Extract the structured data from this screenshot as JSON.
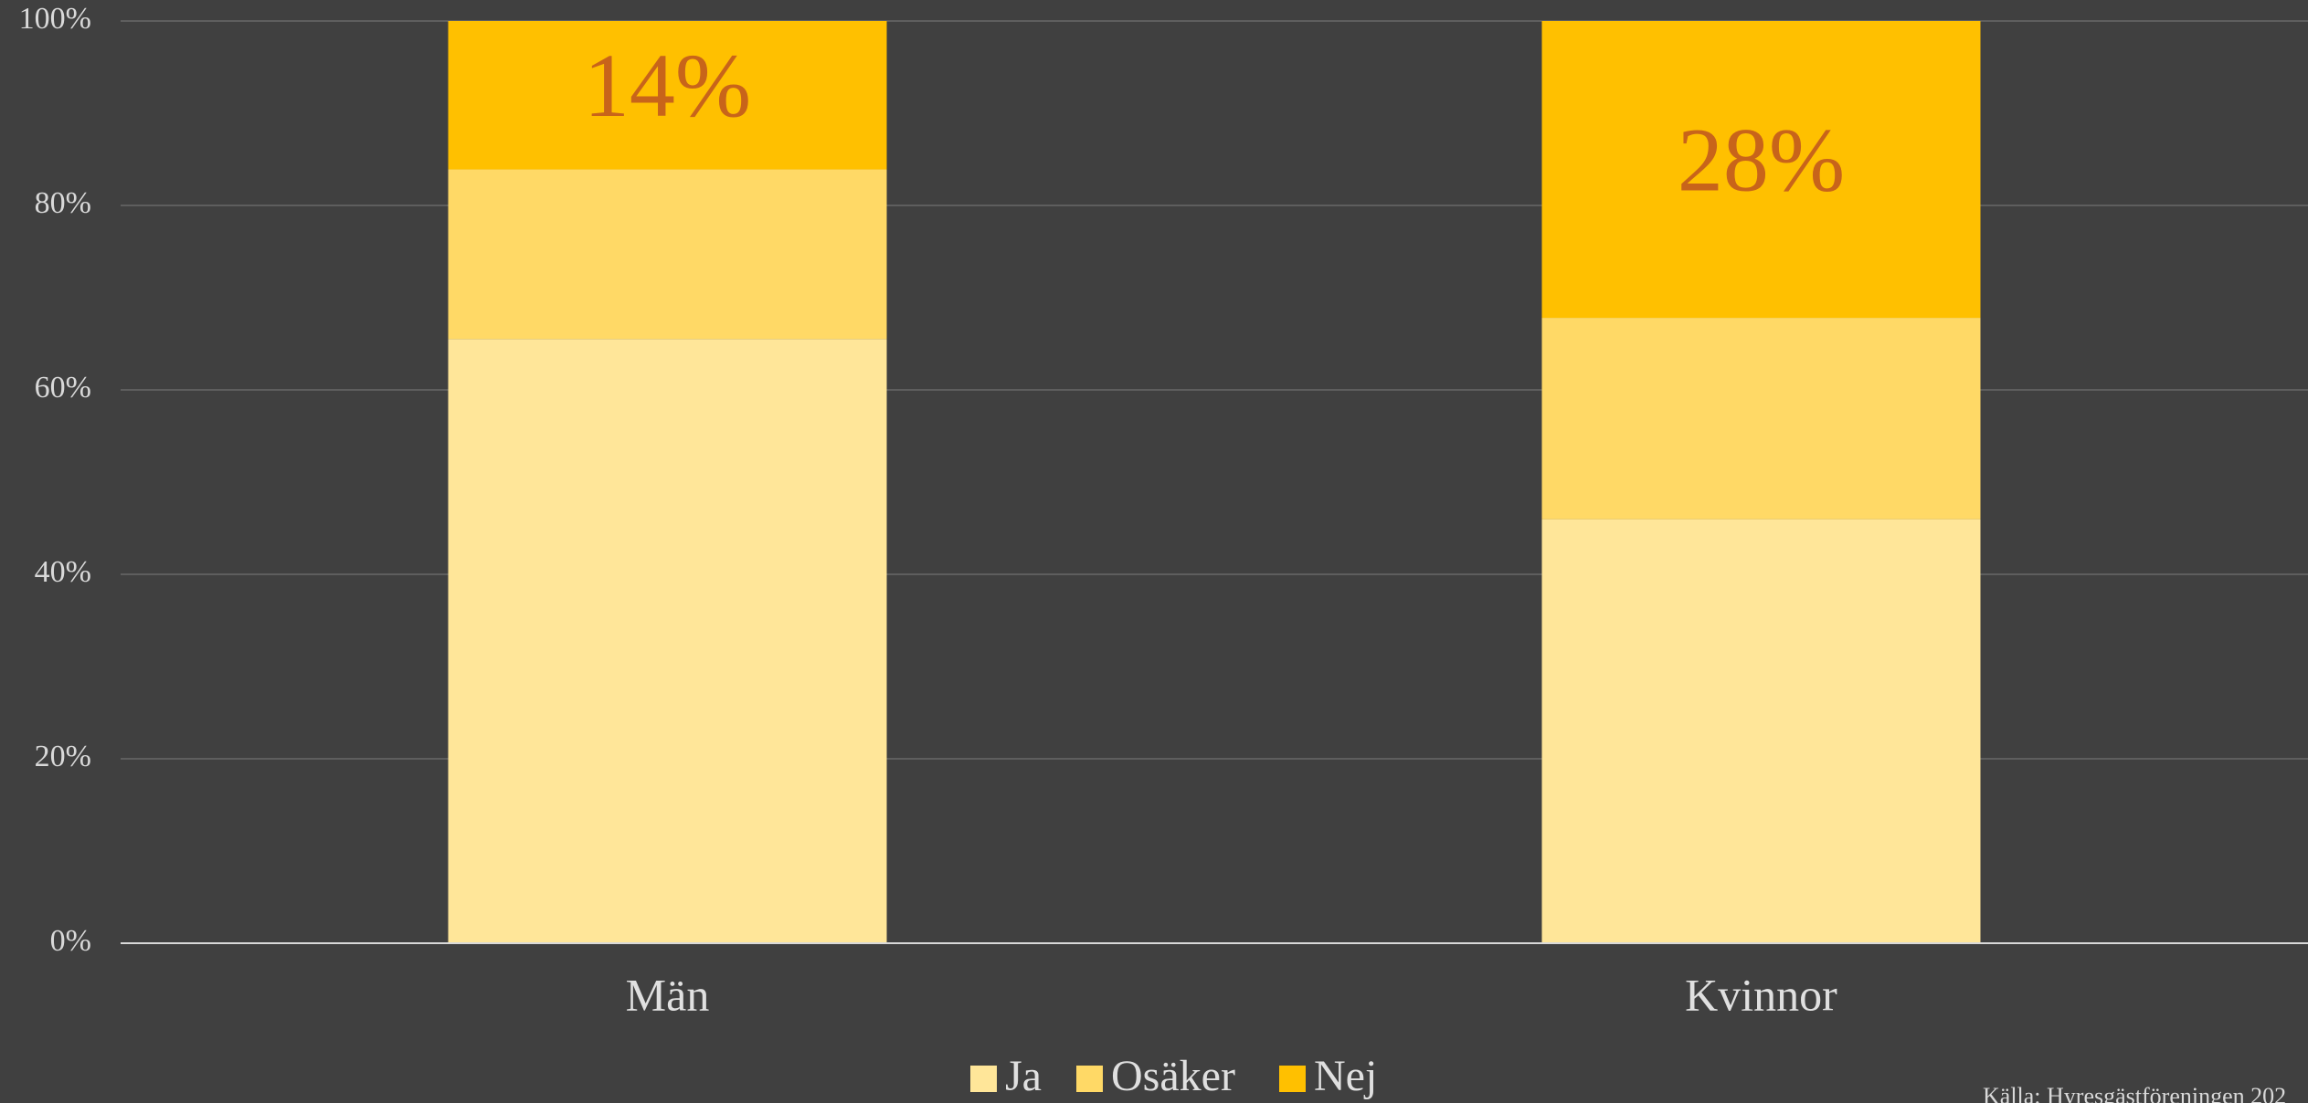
{
  "chart_data": {
    "type": "bar",
    "stacking": "percent",
    "categories": [
      "Män",
      "Kvinnor"
    ],
    "series": [
      {
        "name": "Ja",
        "color": "#ffe699",
        "values": [
          57,
          40
        ]
      },
      {
        "name": "Osäker",
        "color": "#ffd966",
        "values": [
          16,
          19
        ]
      },
      {
        "name": "Nej",
        "color": "#ffc000",
        "values": [
          14,
          28
        ],
        "value_labels": [
          "14%",
          "28%"
        ]
      }
    ],
    "ylim": [
      0,
      100
    ],
    "yticks": [
      {
        "value": 0,
        "label": "0%"
      },
      {
        "value": 20,
        "label": "20%"
      },
      {
        "value": 40,
        "label": "40%"
      },
      {
        "value": 60,
        "label": "60%"
      },
      {
        "value": 80,
        "label": "80%"
      },
      {
        "value": 100,
        "label": "100%"
      }
    ],
    "grid": true,
    "legend": "bottom",
    "source": "Källa: Hyresgästföreningen 202"
  }
}
